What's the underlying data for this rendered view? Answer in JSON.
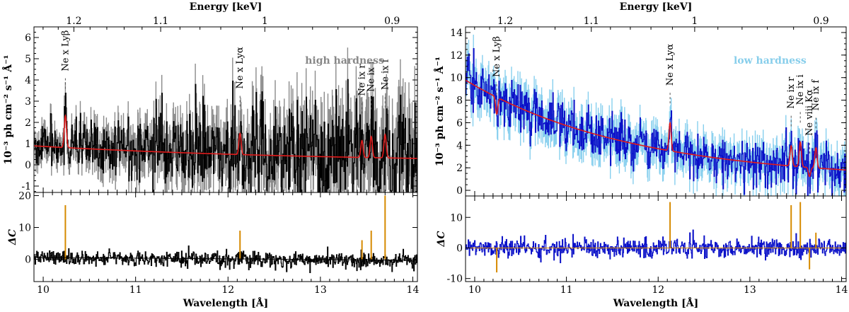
{
  "chart_data": [
    {
      "type": "line",
      "panel": "left",
      "hardness_label": "high hardness",
      "hardness_color": "#888888",
      "data_color": "#000000",
      "err_color": "#8a8a8a",
      "model_color": "#e11b1b",
      "resid_color": "#000000",
      "resid_line_color": "#d68a00",
      "top_axis_label": "Energy [keV]",
      "top_ticks": [
        1.2,
        1.1,
        1,
        0.9
      ],
      "top_tick_labels": [
        "1.2",
        "1.1",
        "1",
        "0.9"
      ],
      "xlabel": "Wavelength [Å]",
      "xlim": [
        9.9,
        14.05
      ],
      "x_ticks": [
        10,
        11,
        12,
        13,
        14
      ],
      "x_tick_labels": [
        "10",
        "11",
        "12",
        "13",
        "14"
      ],
      "ylabel": "10⁻³ ph cm⁻² s⁻¹ Å⁻¹",
      "ylim": [
        -1.3,
        6.5
      ],
      "y_ticks": [
        -1,
        0,
        1,
        2,
        3,
        4,
        5,
        6
      ],
      "y_tick_labels": [
        "-1",
        "0",
        "1",
        "2",
        "3",
        "4",
        "5",
        "6"
      ],
      "resid_label": "ΔC",
      "resid_ylim": [
        -7,
        21
      ],
      "resid_ticks": [
        0,
        10,
        20
      ],
      "resid_tick_labels": [
        "0",
        "10",
        "20"
      ],
      "continuum": {
        "a": 0.78,
        "b": 0.09,
        "k": 0.32
      },
      "err_base": 0.45,
      "err_slope": 0.32,
      "lines": [
        {
          "label": "Ne x Lyβ",
          "wavelength": 10.24,
          "amplitude": 1.5,
          "resid_peak": 17
        },
        {
          "label": "Ne x Lyα",
          "wavelength": 12.13,
          "amplitude": 1.0,
          "resid_peak": 9
        },
        {
          "label": "Ne ix r",
          "wavelength": 13.45,
          "amplitude": 0.8,
          "resid_peak": 6
        },
        {
          "label": "Ne ix i",
          "wavelength": 13.55,
          "amplitude": 1.0,
          "resid_peak": 9
        },
        {
          "label": "Ne ix f",
          "wavelength": 13.7,
          "amplitude": 1.1,
          "resid_peak": 20
        }
      ]
    },
    {
      "type": "line",
      "panel": "right",
      "hardness_label": "low hardness",
      "hardness_color": "#87ceeb",
      "data_color": "#0a10c8",
      "err_color": "#87cfee",
      "model_color": "#e11b1b",
      "resid_color": "#0a10c8",
      "resid_line_color": "#d68a00",
      "top_axis_label": "Energy [keV]",
      "top_ticks": [
        1.2,
        1.1,
        1,
        0.9
      ],
      "top_tick_labels": [
        "1.2",
        "1.1",
        "1",
        "0.9"
      ],
      "xlabel": "Wavelength [Å]",
      "xlim": [
        9.9,
        14.05
      ],
      "x_ticks": [
        10,
        11,
        12,
        13,
        14
      ],
      "x_tick_labels": [
        "10",
        "11",
        "12",
        "13",
        "14"
      ],
      "ylabel": "10⁻³ ph cm⁻² s⁻¹ Å⁻¹",
      "ylim": [
        -0.5,
        14.5
      ],
      "y_ticks": [
        0,
        2,
        4,
        6,
        8,
        10,
        12,
        14
      ],
      "y_tick_labels": [
        "0",
        "2",
        "4",
        "6",
        "8",
        "10",
        "12",
        "14"
      ],
      "resid_label": "ΔC",
      "resid_ylim": [
        -11,
        17
      ],
      "resid_ticks": [
        -10,
        0,
        10
      ],
      "resid_tick_labels": [
        "-10",
        "0",
        "10"
      ],
      "continuum": {
        "a": 8.4,
        "b": 0.9,
        "k": 0.55
      },
      "err_base": 1.1,
      "err_slope": 0.0,
      "lines": [
        {
          "label": "Ne x Lyβ",
          "wavelength": 10.24,
          "amplitude": -1.5,
          "resid_peak": -8
        },
        {
          "label": "Ne x Lyα",
          "wavelength": 12.13,
          "amplitude": 2.5,
          "resid_peak": 15
        },
        {
          "label": "Ne ix r",
          "wavelength": 13.45,
          "amplitude": 1.8,
          "resid_peak": 14
        },
        {
          "label": "Ne ix i",
          "wavelength": 13.55,
          "amplitude": 2.2,
          "resid_peak": 15
        },
        {
          "label": "Ne viii Kα",
          "wavelength": 13.65,
          "amplitude": -0.8,
          "resid_peak": -7
        },
        {
          "label": "Ne ix f",
          "wavelength": 13.72,
          "amplitude": 1.8,
          "resid_peak": 5
        }
      ]
    }
  ]
}
